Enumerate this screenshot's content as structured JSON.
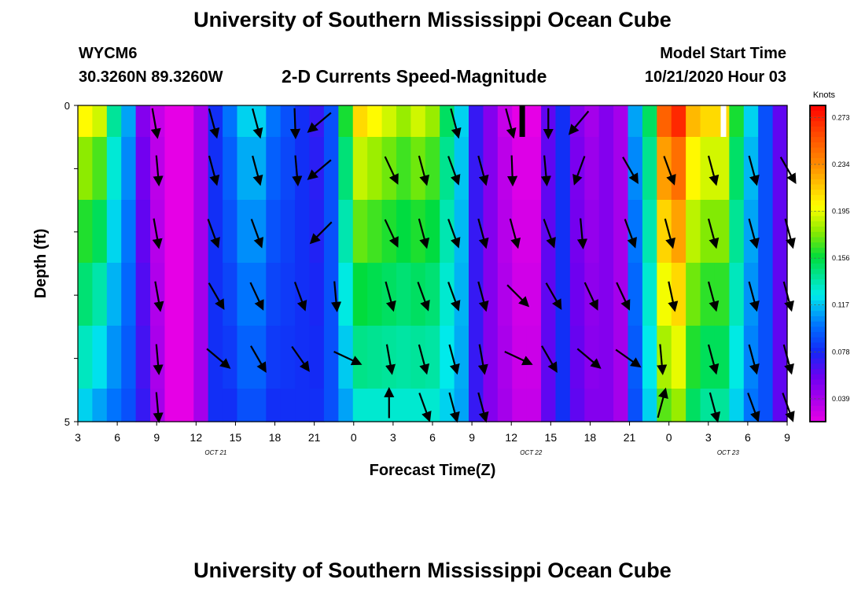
{
  "page": {
    "top_title": "University of Southern Mississippi Ocean Cube",
    "bottom_title": "University of Southern Mississippi Ocean Cube",
    "station_id": "WYCM6",
    "station_coords": "30.3260N 89.3260W",
    "plot_title": "2-D Currents Speed-Magnitude",
    "model_start_label": "Model Start Time",
    "model_start_value": "10/21/2020 Hour 03"
  },
  "chart_data": {
    "type": "heatmap",
    "title": "2-D Currents Speed-Magnitude",
    "xlabel": "Forecast Time(Z)",
    "ylabel": "Depth (ft)",
    "ylim": [
      0,
      5
    ],
    "y_ticks": [
      "0",
      "5"
    ],
    "x_ticks": [
      "3",
      "6",
      "9",
      "12",
      "15",
      "18",
      "21",
      "0",
      "3",
      "6",
      "9",
      "12",
      "15",
      "18",
      "21",
      "0",
      "3",
      "6",
      "9"
    ],
    "date_labels": [
      {
        "text": "OCT 21",
        "tick_index": 3.5
      },
      {
        "text": "OCT 22",
        "tick_index": 11.5
      },
      {
        "text": "OCT 23",
        "tick_index": 16.5
      }
    ],
    "colorbar": {
      "title": "Knots",
      "min": 0.02,
      "max": 0.283,
      "tick_labels": [
        "0.273",
        "0.234",
        "0.195",
        "0.156",
        "0.117",
        "0.078",
        "0.039"
      ],
      "tick_values": [
        0.273,
        0.234,
        0.195,
        0.156,
        0.117,
        0.078,
        0.039
      ]
    },
    "depth_rows": 5,
    "surface_row_values": [
      0.2,
      0.19,
      0.14,
      0.11,
      0.05,
      0.03,
      0.02,
      0.02,
      0.04,
      0.08,
      0.1,
      0.12,
      0.12,
      0.1,
      0.09,
      0.08,
      0.07,
      0.09,
      0.16,
      0.21,
      0.2,
      0.19,
      0.18,
      0.19,
      0.18,
      0.15,
      0.12,
      0.07,
      0.05,
      0.03,
      0.02,
      0.02,
      0.06,
      0.08,
      0.05,
      0.04,
      0.05,
      0.04,
      0.11,
      0.15,
      0.25,
      0.27,
      0.22,
      0.21,
      0.21,
      0.16,
      0.12,
      0.09,
      0.06
    ],
    "profile_values": [
      0.12,
      0.11,
      0.1,
      0.09,
      0.07,
      0.04,
      0.02,
      0.02,
      0.04,
      0.08,
      0.08,
      0.09,
      0.09,
      0.08,
      0.08,
      0.08,
      0.08,
      0.09,
      0.11,
      0.13,
      0.13,
      0.13,
      0.13,
      0.13,
      0.13,
      0.12,
      0.11,
      0.07,
      0.05,
      0.04,
      0.03,
      0.03,
      0.06,
      0.08,
      0.06,
      0.05,
      0.05,
      0.04,
      0.09,
      0.12,
      0.17,
      0.18,
      0.15,
      0.14,
      0.14,
      0.12,
      0.1,
      0.09,
      0.06
    ],
    "arrow_rows": [
      [
        [
          5.3,
          170
        ],
        [
          9.3,
          165
        ],
        [
          12.3,
          165
        ],
        [
          15.0,
          178
        ],
        [
          16.8,
          230
        ],
        [
          26.0,
          165
        ],
        [
          29.8,
          165
        ],
        [
          32.5,
          180
        ],
        [
          34.7,
          220
        ]
      ],
      [
        [
          5.5,
          175
        ],
        [
          9.3,
          165
        ],
        [
          12.3,
          165
        ],
        [
          15.1,
          175
        ],
        [
          16.8,
          230
        ],
        [
          21.6,
          155
        ],
        [
          23.8,
          165
        ],
        [
          25.9,
          160
        ],
        [
          27.9,
          165
        ],
        [
          30.0,
          178
        ],
        [
          32.3,
          175
        ],
        [
          34.7,
          200
        ],
        [
          38.1,
          150
        ],
        [
          40.8,
          160
        ],
        [
          43.8,
          165
        ],
        [
          46.6,
          165
        ],
        [
          49.0,
          150
        ]
      ],
      [
        [
          5.4,
          170
        ],
        [
          9.3,
          160
        ],
        [
          12.3,
          160
        ],
        [
          16.9,
          225
        ],
        [
          21.6,
          155
        ],
        [
          23.8,
          165
        ],
        [
          25.9,
          160
        ],
        [
          27.9,
          165
        ],
        [
          30.1,
          165
        ],
        [
          32.5,
          160
        ],
        [
          34.8,
          175
        ],
        [
          38.1,
          160
        ],
        [
          40.8,
          165
        ],
        [
          43.8,
          165
        ],
        [
          46.6,
          165
        ],
        [
          49.1,
          165
        ]
      ],
      [
        [
          5.5,
          170
        ],
        [
          9.5,
          150
        ],
        [
          12.3,
          155
        ],
        [
          15.3,
          160
        ],
        [
          17.8,
          175
        ],
        [
          21.5,
          165
        ],
        [
          23.8,
          160
        ],
        [
          25.9,
          160
        ],
        [
          27.9,
          165
        ],
        [
          30.3,
          135
        ],
        [
          32.8,
          150
        ],
        [
          35.4,
          155
        ],
        [
          37.6,
          155
        ],
        [
          41.0,
          168
        ],
        [
          43.8,
          165
        ],
        [
          46.6,
          165
        ],
        [
          49.0,
          165
        ]
      ],
      [
        [
          5.5,
          175
        ],
        [
          9.6,
          130
        ],
        [
          12.4,
          150
        ],
        [
          15.3,
          145
        ],
        [
          18.5,
          115
        ],
        [
          21.5,
          170
        ],
        [
          23.8,
          165
        ],
        [
          25.9,
          165
        ],
        [
          27.9,
          170
        ],
        [
          30.3,
          115
        ],
        [
          32.5,
          150
        ],
        [
          35.2,
          130
        ],
        [
          37.9,
          125
        ],
        [
          40.3,
          175
        ],
        [
          43.8,
          165
        ],
        [
          46.6,
          165
        ],
        [
          49.0,
          165
        ]
      ],
      [
        [
          5.5,
          175
        ],
        [
          21.5,
          0
        ],
        [
          23.9,
          160
        ],
        [
          25.9,
          165
        ],
        [
          27.9,
          165
        ],
        [
          40.3,
          15
        ],
        [
          43.9,
          165
        ],
        [
          46.6,
          160
        ],
        [
          49.0,
          160
        ]
      ]
    ],
    "markers": [
      {
        "color": "#000000",
        "column": 30.7
      },
      {
        "color": "#ffffff",
        "column": 44.6
      }
    ],
    "grid": false
  }
}
